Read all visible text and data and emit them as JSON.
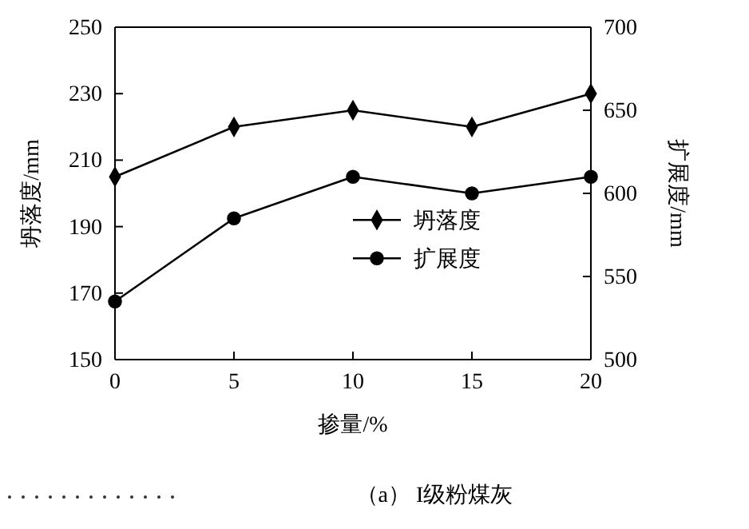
{
  "chart_data": {
    "type": "line",
    "xlabel": "掺量/%",
    "ylabel": "坍落度/mm",
    "y2label": "扩展度/mm",
    "x": [
      0,
      5,
      10,
      15,
      20
    ],
    "xlim": [
      0,
      20
    ],
    "xticks": [
      0,
      5,
      10,
      15,
      20
    ],
    "ylim": [
      150,
      250
    ],
    "yticks": [
      150,
      170,
      190,
      210,
      230,
      250
    ],
    "y2lim": [
      500,
      700
    ],
    "y2ticks": [
      500,
      550,
      600,
      650,
      700
    ],
    "series": [
      {
        "name": "坍落度",
        "color": "#000000",
        "marker": "diamond",
        "values": [
          205,
          220,
          225,
          220,
          230
        ]
      },
      {
        "name": "扩展度",
        "color": "#000000",
        "marker": "circle",
        "axis": "y2",
        "values": [
          535,
          585,
          610,
          600,
          610
        ]
      }
    ],
    "legend": "center",
    "grid": false,
    "line_style": "solid",
    "annotations": [
      "（a） I级粉煤灰"
    ]
  }
}
